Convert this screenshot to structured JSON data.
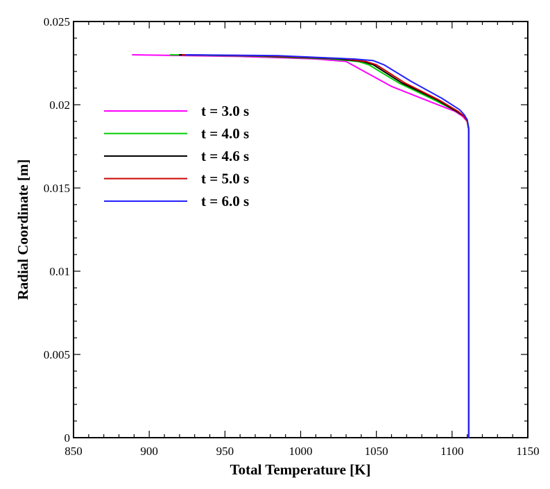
{
  "chart_data": {
    "type": "line",
    "xlabel": "Total Temperature [K]",
    "ylabel": "Radial Coordinate [m]",
    "xlim": [
      850,
      1150
    ],
    "ylim": [
      0,
      0.025
    ],
    "xticks": [
      850,
      900,
      950,
      1000,
      1050,
      1100,
      1150
    ],
    "yticks": [
      0,
      0.005,
      0.01,
      0.015,
      0.02,
      0.025
    ],
    "xtick_labels": [
      "850",
      "900",
      "950",
      "1000",
      "1050",
      "1100",
      "1150"
    ],
    "ytick_labels": [
      "0",
      "0.005",
      "0.01",
      "0.015",
      "0.02",
      "0.025"
    ],
    "grid": false,
    "legend_position": "upper-left",
    "series": [
      {
        "name": "t = 3.0 s",
        "color": "#ff00ff",
        "points": [
          [
            889,
            0.023
          ],
          [
            960,
            0.0229
          ],
          [
            1010,
            0.02275
          ],
          [
            1030,
            0.0226
          ],
          [
            1040,
            0.0221
          ],
          [
            1060,
            0.0211
          ],
          [
            1085,
            0.0202
          ],
          [
            1102,
            0.0196
          ],
          [
            1107,
            0.0193
          ],
          [
            1110,
            0.019
          ],
          [
            1111,
            0.0185
          ],
          [
            1111,
            0.018
          ],
          [
            1111,
            0.0
          ]
        ]
      },
      {
        "name": "t = 4.0 s",
        "color": "#00cc00",
        "points": [
          [
            914,
            0.023
          ],
          [
            970,
            0.02292
          ],
          [
            1020,
            0.02275
          ],
          [
            1038,
            0.0226
          ],
          [
            1045,
            0.0224
          ],
          [
            1065,
            0.0213
          ],
          [
            1088,
            0.0203
          ],
          [
            1103,
            0.0196
          ],
          [
            1108,
            0.0193
          ],
          [
            1110,
            0.019
          ],
          [
            1111,
            0.0185
          ],
          [
            1111,
            0.018
          ],
          [
            1111,
            0.0
          ]
        ]
      },
      {
        "name": "t = 4.6 s",
        "color": "#000000",
        "points": [
          [
            920,
            0.023
          ],
          [
            975,
            0.02293
          ],
          [
            1025,
            0.02276
          ],
          [
            1041,
            0.0226
          ],
          [
            1048,
            0.0224
          ],
          [
            1067,
            0.0213
          ],
          [
            1090,
            0.0203
          ],
          [
            1103,
            0.0196
          ],
          [
            1108,
            0.0193
          ],
          [
            1110,
            0.019
          ],
          [
            1111,
            0.0185
          ],
          [
            1111,
            0.018
          ],
          [
            1111,
            0.0
          ]
        ]
      },
      {
        "name": "t = 5.0 s",
        "color": "#cc0000",
        "points": [
          [
            922,
            0.023
          ],
          [
            978,
            0.02294
          ],
          [
            1028,
            0.02277
          ],
          [
            1043,
            0.0226
          ],
          [
            1050,
            0.0224
          ],
          [
            1069,
            0.0213
          ],
          [
            1091,
            0.0203
          ],
          [
            1104,
            0.0196
          ],
          [
            1108,
            0.0193
          ],
          [
            1110,
            0.019
          ],
          [
            1111,
            0.0185
          ],
          [
            1111,
            0.018
          ],
          [
            1111,
            0.0
          ]
        ]
      },
      {
        "name": "t = 6.0 s",
        "color": "#2222ff",
        "points": [
          [
            924,
            0.023
          ],
          [
            985,
            0.02295
          ],
          [
            1035,
            0.02275
          ],
          [
            1048,
            0.02265
          ],
          [
            1055,
            0.0224
          ],
          [
            1073,
            0.0214
          ],
          [
            1093,
            0.0204
          ],
          [
            1105,
            0.0197
          ],
          [
            1108,
            0.0194
          ],
          [
            1110,
            0.0191
          ],
          [
            1111,
            0.0186
          ],
          [
            1111,
            0.018
          ],
          [
            1111,
            0.0
          ]
        ]
      }
    ]
  }
}
